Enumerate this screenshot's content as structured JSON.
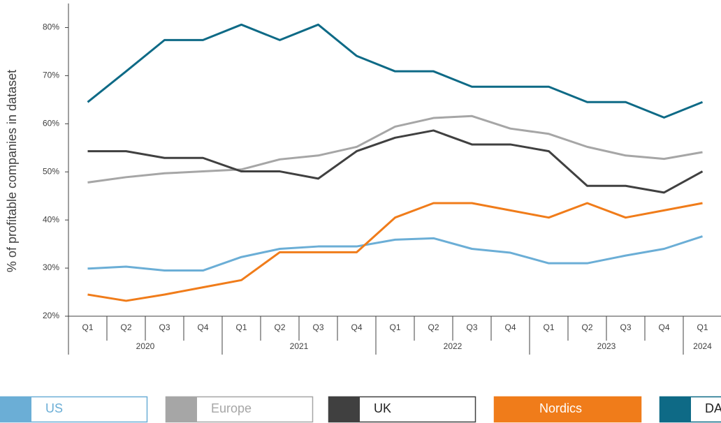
{
  "chart_data": {
    "type": "line",
    "y_label": "% of profitable companies in dataset",
    "categories": [
      "Q1",
      "Q2",
      "Q3",
      "Q4",
      "Q1",
      "Q2",
      "Q3",
      "Q4",
      "Q1",
      "Q2",
      "Q3",
      "Q4",
      "Q1",
      "Q2",
      "Q3",
      "Q4",
      "Q1"
    ],
    "years": [
      "2020",
      "2020",
      "2020",
      "2020",
      "2021",
      "2021",
      "2021",
      "2021",
      "2022",
      "2022",
      "2022",
      "2022",
      "2023",
      "2023",
      "2023",
      "2023",
      "2024"
    ],
    "series": [
      {
        "name": "US",
        "color": "#6baed6",
        "values": [
          29.9,
          30.3,
          29.5,
          29.5,
          32.3,
          34.0,
          34.5,
          34.5,
          35.9,
          36.2,
          34.0,
          33.2,
          31.0,
          31.0,
          32.6,
          34.0,
          36.6
        ]
      },
      {
        "name": "Europe",
        "color": "#a6a6a6",
        "values": [
          47.8,
          48.9,
          49.7,
          50.1,
          50.5,
          52.6,
          53.4,
          55.2,
          59.4,
          61.2,
          61.6,
          59.0,
          57.9,
          55.2,
          53.4,
          52.7,
          54.1
        ]
      },
      {
        "name": "UK",
        "color": "#404040",
        "values": [
          54.3,
          54.3,
          52.9,
          52.9,
          50.1,
          50.1,
          48.6,
          54.3,
          57.1,
          58.6,
          55.7,
          55.7,
          54.3,
          47.1,
          47.1,
          45.7,
          50.1
        ]
      },
      {
        "name": "Nordics",
        "color": "#f07c1a",
        "values": [
          24.5,
          23.2,
          24.5,
          26.0,
          27.5,
          33.3,
          33.3,
          33.3,
          40.5,
          43.5,
          43.5,
          42.0,
          40.5,
          43.5,
          40.5,
          42.0,
          43.5
        ]
      },
      {
        "name": "DACH",
        "color": "#0e6a86",
        "values": [
          64.5,
          70.9,
          77.4,
          77.4,
          80.6,
          77.4,
          80.6,
          74.1,
          70.9,
          70.9,
          67.7,
          67.7,
          67.7,
          64.5,
          64.5,
          61.3,
          64.5
        ]
      }
    ],
    "ylim": [
      20,
      85
    ],
    "yticks": [
      {
        "value": 20,
        "label": "20%"
      },
      {
        "value": 30,
        "label": "30%"
      },
      {
        "value": 40,
        "label": "40%"
      },
      {
        "value": 50,
        "label": "50%"
      },
      {
        "value": 60,
        "label": "60%"
      },
      {
        "value": 70,
        "label": "70%"
      },
      {
        "value": 80,
        "label": "80%"
      }
    ],
    "grid": false
  }
}
